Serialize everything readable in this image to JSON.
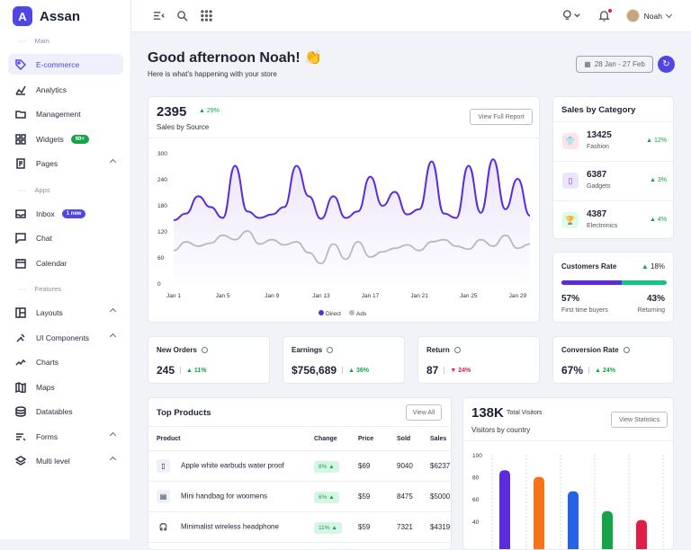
{
  "brand": {
    "logo": "A",
    "name": "Assan"
  },
  "sidebar": {
    "sections": [
      "Main",
      "Apps",
      "Features"
    ],
    "items": [
      {
        "label": "E-commerce",
        "icon": "tag-icon",
        "active": true
      },
      {
        "label": "Analytics",
        "icon": "analytics-icon"
      },
      {
        "label": "Management",
        "icon": "folder-icon"
      },
      {
        "label": "Widgets",
        "icon": "grid-icon",
        "badge": "60+",
        "badge_color": "#16a34a"
      },
      {
        "label": "Pages",
        "icon": "page-icon"
      },
      {
        "label": "Inbox",
        "icon": "inbox-icon",
        "badge": "1 new",
        "badge_color": "#4f46e5"
      },
      {
        "label": "Chat",
        "icon": "chat-icon"
      },
      {
        "label": "Calendar",
        "icon": "calendar-icon"
      },
      {
        "label": "Layouts",
        "icon": "layout-icon"
      },
      {
        "label": "UI Components",
        "icon": "tools-icon"
      },
      {
        "label": "Charts",
        "icon": "chart-icon"
      },
      {
        "label": "Maps",
        "icon": "map-icon"
      },
      {
        "label": "Datatables",
        "icon": "database-icon"
      },
      {
        "label": "Forms",
        "icon": "form-icon"
      },
      {
        "label": "Multi level",
        "icon": "layers-icon"
      }
    ]
  },
  "topbar": {
    "user": "Noah"
  },
  "header": {
    "greeting": "Good afternoon Noah! 👏",
    "subtitle": "Here is what's happening with your store",
    "date_range": "28 Jan - 27 Feb"
  },
  "sales_source": {
    "value": "2395",
    "change": "29%",
    "label": "Sales by Source",
    "button": "View Full Report",
    "chart_data": {
      "type": "line",
      "x": [
        "Jan 1",
        "Jan 2",
        "Jan 3",
        "Jan 4",
        "Jan 5",
        "Jan 6",
        "Jan 7",
        "Jan 8",
        "Jan 9",
        "Jan 10",
        "Jan 11",
        "Jan 12",
        "Jan 13",
        "Jan 14",
        "Jan 15",
        "Jan 16",
        "Jan 17",
        "Jan 18",
        "Jan 19",
        "Jan 20",
        "Jan 21",
        "Jan 22",
        "Jan 23",
        "Jan 24",
        "Jan 25",
        "Jan 26",
        "Jan 27",
        "Jan 28",
        "Jan 29",
        "Jan 30"
      ],
      "x_ticks": [
        "Jan 1",
        "Jan 5",
        "Jan 9",
        "Jan 13",
        "Jan 17",
        "Jan 21",
        "Jan 25",
        "Jan 29"
      ],
      "ylim": [
        0,
        300
      ],
      "y_ticks": [
        "0",
        "60",
        "120",
        "180",
        "240",
        "300"
      ],
      "series": [
        {
          "name": "Direct",
          "color": "#5b2be0",
          "values": [
            145,
            160,
            200,
            175,
            150,
            270,
            165,
            150,
            158,
            175,
            270,
            200,
            148,
            200,
            150,
            165,
            245,
            178,
            210,
            158,
            170,
            280,
            160,
            150,
            270,
            162,
            285,
            170,
            240,
            155
          ]
        },
        {
          "name": "Ads",
          "color": "#b8b8c4",
          "values": [
            75,
            95,
            85,
            92,
            110,
            100,
            120,
            90,
            100,
            88,
            95,
            70,
            45,
            90,
            55,
            95,
            60,
            72,
            80,
            88,
            75,
            95,
            100,
            85,
            78,
            100,
            85,
            110,
            80,
            90
          ]
        }
      ]
    }
  },
  "categories": {
    "title": "Sales by Category",
    "items": [
      {
        "value": "13425",
        "label": "Fashion",
        "change": "12%",
        "icon": "shirt-icon",
        "color": "#e11d48",
        "bg": "#fde4ea"
      },
      {
        "value": "6387",
        "label": "Gadgets",
        "change": "3%",
        "icon": "phone-icon",
        "color": "#7c3aed",
        "bg": "#ede4fd"
      },
      {
        "value": "4387",
        "label": "Electronics",
        "change": "4%",
        "icon": "trophy-icon",
        "color": "#16a34a",
        "bg": "#dcfbe9"
      }
    ]
  },
  "customers": {
    "title": "Customers Rate",
    "change": "18%",
    "first_pct": "57%",
    "first_label": "First time buyers",
    "ret_pct": "43%",
    "ret_label": "Returning",
    "fill": 57
  },
  "stats": [
    {
      "title": "New Orders",
      "value": "245",
      "change": "11%",
      "dir": "up"
    },
    {
      "title": "Earnings",
      "value": "$756,689",
      "change": "36%",
      "dir": "up"
    },
    {
      "title": "Return",
      "value": "87",
      "change": "24%",
      "dir": "down"
    },
    {
      "title": "Conversion Rate",
      "value": "67%",
      "change": "24%",
      "dir": "up"
    }
  ],
  "products": {
    "title": "Top Products",
    "button": "View All",
    "columns": [
      "Product",
      "Change",
      "Price",
      "Sold",
      "Sales"
    ],
    "rows": [
      [
        "Apple white earbuds water proof",
        "8%",
        "$69",
        "9040",
        "$6237"
      ],
      [
        "Mini handbag for woomens",
        "6%",
        "$59",
        "8475",
        "$5000"
      ],
      [
        "Minimalist wireless headphone",
        "11%",
        "$59",
        "7321",
        "$4319"
      ]
    ]
  },
  "visitors": {
    "value": "138K",
    "value_label": "Total Visitors",
    "label": "Visitors by country",
    "button": "View Statistics",
    "chart_data": {
      "type": "bar",
      "ylim": [
        0,
        100
      ],
      "y_ticks": [
        "100",
        "80",
        "60",
        "40"
      ],
      "values": [
        86,
        80,
        67,
        49,
        41
      ],
      "colors": [
        "#5b2be0",
        "#f97316",
        "#2563eb",
        "#16a34a",
        "#e11d48"
      ]
    }
  }
}
